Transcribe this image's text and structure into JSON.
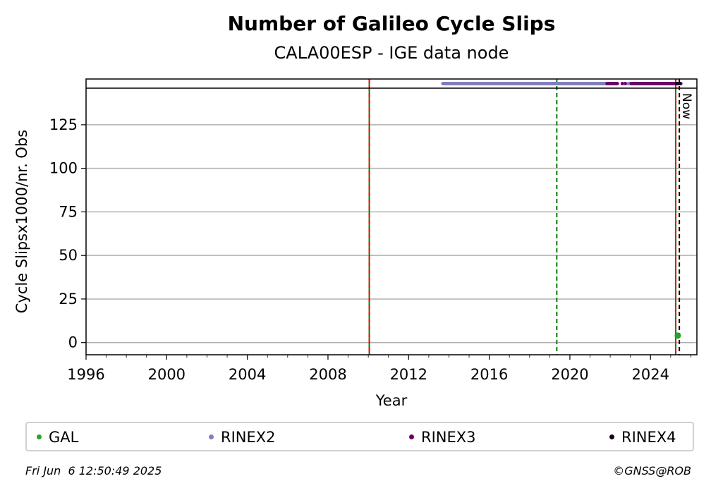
{
  "colors": {
    "GAL": "#2ca02c",
    "RINEX2": "#7f7fbf",
    "RINEX3": "#6b0068",
    "RINEX4": "#1a0020",
    "event_green": "#008000",
    "event_red": "#ff0000",
    "grid": "#b0b0b0"
  },
  "chart_data": {
    "type": "scatter",
    "title": "Number of Galileo Cycle Slips",
    "subtitle": "CALA00ESP - IGE data node",
    "xlabel": "Year",
    "ylabel": "Cycle Slipsx1000/nr. Obs",
    "xlim": [
      1996,
      2026.3
    ],
    "ylim": [
      -7,
      146
    ],
    "x_ticks": [
      "1996",
      "2000",
      "2004",
      "2008",
      "2012",
      "2016",
      "2020",
      "2024"
    ],
    "y_ticks": [
      "0",
      "25",
      "50",
      "75",
      "100",
      "125"
    ],
    "grid": "horizontal",
    "series": [
      {
        "name": "GAL",
        "x": [
          2025.35
        ],
        "y": [
          4
        ]
      },
      {
        "name": "RINEX2",
        "segments": [
          [
            2013.7,
            2020.8
          ],
          [
            2020.8,
            2021.9
          ],
          [
            2022.9,
            2023.1
          ]
        ]
      },
      {
        "name": "RINEX3",
        "segments": [
          [
            2021.85,
            2022.35
          ],
          [
            2023.05,
            2025.5
          ]
        ],
        "points": [
          2022.6,
          2022.75
        ]
      },
      {
        "name": "RINEX4",
        "segments": [
          [
            2025.3,
            2025.45
          ]
        ]
      }
    ],
    "vertical_lines": [
      {
        "x": 2010.05,
        "color": "green",
        "style": "solid"
      },
      {
        "x": 2010.05,
        "color": "red",
        "style": "dashed"
      },
      {
        "x": 2019.35,
        "color": "green",
        "style": "dashed"
      },
      {
        "x": 2025.25,
        "color": "green",
        "style": "solid"
      },
      {
        "x": 2025.25,
        "color": "red",
        "style": "dashed"
      },
      {
        "x": 2025.43,
        "color": "black",
        "style": "dashed"
      }
    ],
    "annotation": "Now",
    "legend": [
      "GAL",
      "RINEX2",
      "RINEX3",
      "RINEX4"
    ],
    "legend_position": "bottom"
  },
  "footer": {
    "timestamp": "Fri Jun  6 12:50:49 2025",
    "credit": "©GNSS@ROB"
  }
}
